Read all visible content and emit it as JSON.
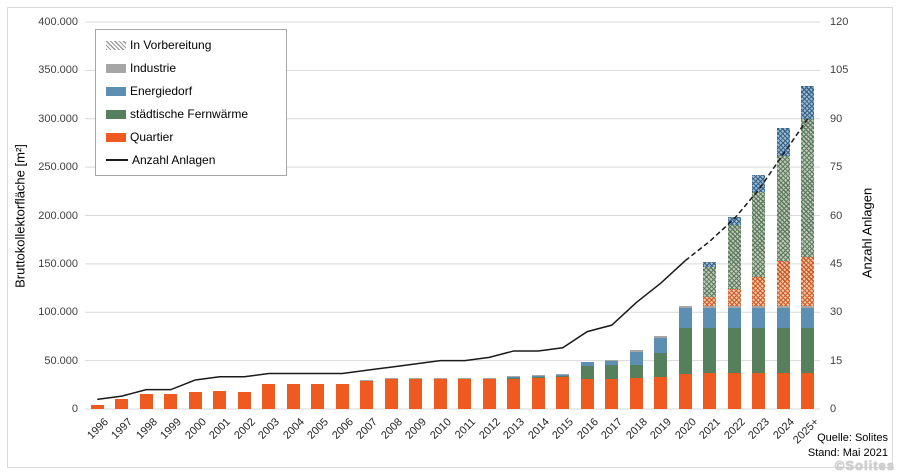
{
  "chart_data": {
    "type": "bar",
    "subtype": "stacked-bars-with-line-overlay",
    "title": "",
    "categories": [
      "1996",
      "1997",
      "1998",
      "1999",
      "2000",
      "2001",
      "2002",
      "2003",
      "2004",
      "2005",
      "2006",
      "2007",
      "2008",
      "2009",
      "2010",
      "2011",
      "2012",
      "2013",
      "2014",
      "2015",
      "2016",
      "2017",
      "2018",
      "2019",
      "2020",
      "2021",
      "2022",
      "2023",
      "2024",
      "2025+"
    ],
    "series": [
      {
        "key": "quartier",
        "name": "Quartier",
        "style": "solid",
        "values": [
          4000,
          10000,
          15000,
          15500,
          18000,
          18500,
          18000,
          26000,
          26000,
          26000,
          26000,
          29500,
          31500,
          32000,
          31500,
          31000,
          31000,
          31500,
          32000,
          33000,
          31000,
          31000,
          32000,
          33000,
          36000,
          37000,
          37000,
          37000,
          37000,
          37000
        ]
      },
      {
        "key": "fernwaerme",
        "name": "städtische Fernwärme",
        "style": "solid",
        "values": [
          0,
          0,
          0,
          0,
          0,
          0,
          0,
          0,
          0,
          0,
          0,
          0,
          0,
          0,
          0,
          0,
          0,
          1000,
          1000,
          1500,
          13000,
          14000,
          13000,
          25000,
          48000,
          47000,
          47000,
          47000,
          47000,
          47000
        ]
      },
      {
        "key": "energiedorf",
        "name": "Energiedorf",
        "style": "solid",
        "values": [
          0,
          0,
          0,
          0,
          0,
          0,
          0,
          0,
          0,
          0,
          0,
          0,
          0,
          0,
          0,
          0,
          0,
          1000,
          1000,
          1000,
          5000,
          5000,
          14000,
          15000,
          20000,
          20000,
          20000,
          20000,
          20000,
          20000
        ]
      },
      {
        "key": "industrie",
        "name": "Industrie",
        "style": "solid",
        "values": [
          0,
          0,
          0,
          0,
          0,
          0,
          0,
          0,
          0,
          0,
          0,
          500,
          500,
          500,
          1000,
          1000,
          1000,
          1000,
          1000,
          1000,
          0,
          1000,
          2000,
          2000,
          2000,
          2000,
          2000,
          2000,
          2000,
          2000
        ]
      },
      {
        "key": "vorbereitung_quartier",
        "name": "In Vorbereitung (Quartier)",
        "style": "hatched",
        "hatch": "q",
        "values": [
          0,
          0,
          0,
          0,
          0,
          0,
          0,
          0,
          0,
          0,
          0,
          0,
          0,
          0,
          0,
          0,
          0,
          0,
          0,
          0,
          0,
          0,
          0,
          0,
          0,
          10000,
          18000,
          30000,
          47000,
          51000
        ]
      },
      {
        "key": "vorbereitung_fernwaerme",
        "name": "In Vorbereitung (städtische Fernwärme)",
        "style": "hatched",
        "hatch": "f",
        "values": [
          0,
          0,
          0,
          0,
          0,
          0,
          0,
          0,
          0,
          0,
          0,
          0,
          0,
          0,
          0,
          0,
          0,
          0,
          0,
          0,
          0,
          0,
          0,
          0,
          0,
          31000,
          66000,
          88000,
          109000,
          143000
        ]
      },
      {
        "key": "vorbereitung_energiedorf",
        "name": "In Vorbereitung (Energiedorf)",
        "style": "hatched",
        "hatch": "e",
        "values": [
          0,
          0,
          0,
          0,
          0,
          0,
          0,
          0,
          0,
          0,
          0,
          0,
          0,
          0,
          0,
          0,
          0,
          0,
          0,
          0,
          0,
          0,
          0,
          0,
          0,
          5000,
          8000,
          18000,
          28000,
          34000
        ]
      }
    ],
    "line_series": {
      "name": "Anzahl Anlagen",
      "values": [
        3,
        4,
        6,
        6,
        9,
        10,
        10,
        11,
        11,
        11,
        11,
        12,
        13,
        14,
        15,
        15,
        16,
        18,
        18,
        19,
        24,
        26,
        33,
        39,
        46,
        52,
        59,
        68,
        79,
        90
      ],
      "dashed_from_index": 24
    },
    "ylabel": "Bruttokollektorfläche [m²]",
    "ylim": [
      0,
      400000
    ],
    "ytick_values": [
      0,
      50000,
      100000,
      150000,
      200000,
      250000,
      300000,
      350000,
      400000
    ],
    "ytick_labels": [
      "0",
      "50.000",
      "100.000",
      "150.000",
      "200.000",
      "250.000",
      "300.000",
      "350.000",
      "400.000"
    ],
    "y2label": "Anzahl Anlagen",
    "y2lim": [
      0,
      120
    ],
    "y2tick_values": [
      0,
      15,
      30,
      45,
      60,
      75,
      90,
      105,
      120
    ],
    "y2tick_labels": [
      "0",
      "15",
      "30",
      "45",
      "60",
      "75",
      "90",
      "105",
      "120"
    ],
    "grid": "horizontal",
    "legend_position": "top-left-inside"
  },
  "legend": {
    "items": [
      {
        "label": "In Vorbereitung",
        "swatch": "hatch"
      },
      {
        "label": "Industrie",
        "swatch": "industrie"
      },
      {
        "label": "Energiedorf",
        "swatch": "energiedorf"
      },
      {
        "label": "städtische Fernwärme",
        "swatch": "fernwaerme"
      },
      {
        "label": "Quartier",
        "swatch": "quartier"
      },
      {
        "label": "Anzahl Anlagen",
        "swatch": "line"
      }
    ]
  },
  "source": {
    "line1": "Quelle: Solites",
    "line2": "Stand: Mai 2021"
  },
  "watermark": "©Solites",
  "colors": {
    "quartier": "#ee5a20",
    "fernwaerme": "#567f5b",
    "energiedorf": "#5d8fb2",
    "industrie": "#a6a6a6",
    "line": "#1a1a1a",
    "grid": "#d9d9d9",
    "hatch_quartier_base": "#f2c5a6",
    "hatch_quartier_stripe": "#cf5a26",
    "hatch_fernwaerme_base": "#bfcab9",
    "hatch_fernwaerme_stripe": "#5c7a5e",
    "hatch_energiedorf_base": "#9db9cd",
    "hatch_energiedorf_stripe": "#33618a",
    "legend_hatch_stripe": "#999999"
  }
}
